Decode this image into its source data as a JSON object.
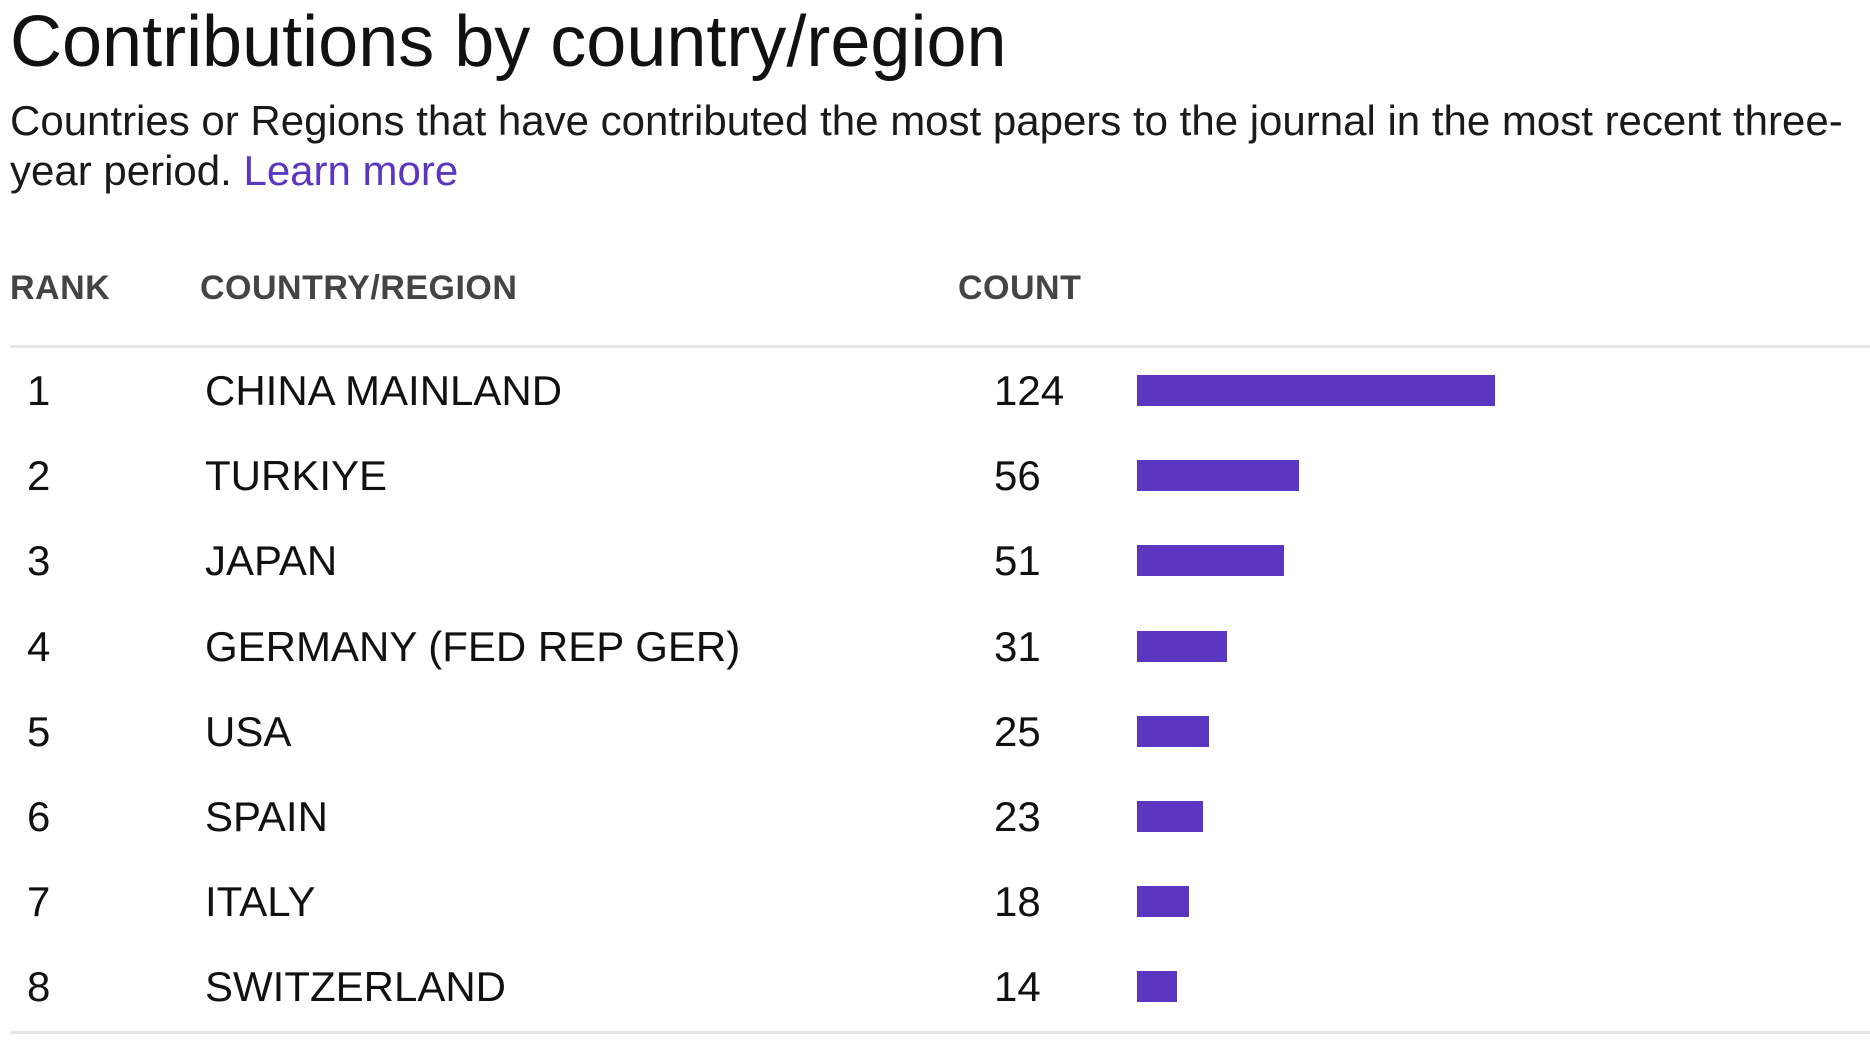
{
  "title": "Contributions by country/region",
  "subtitle": {
    "text": "Countries or Regions that have contributed the most papers to the journal in the most recent three-year period.",
    "link_label": "Learn more"
  },
  "columns": {
    "rank": "RANK",
    "country": "COUNTRY/REGION",
    "count": "COUNT"
  },
  "colors": {
    "accent": "#5b36c0",
    "divider": "#e6e6e6"
  },
  "rows": [
    {
      "rank": "1",
      "country": "CHINA MAINLAND",
      "count": "124",
      "value": 124
    },
    {
      "rank": "2",
      "country": "TURKIYE",
      "count": "56",
      "value": 56
    },
    {
      "rank": "3",
      "country": "JAPAN",
      "count": "51",
      "value": 51
    },
    {
      "rank": "4",
      "country": "GERMANY (FED REP GER)",
      "count": "31",
      "value": 31
    },
    {
      "rank": "5",
      "country": "USA",
      "count": "25",
      "value": 25
    },
    {
      "rank": "6",
      "country": "SPAIN",
      "count": "23",
      "value": 23
    },
    {
      "rank": "7",
      "country": "ITALY",
      "count": "18",
      "value": 18
    },
    {
      "rank": "8",
      "country": "SWITZERLAND",
      "count": "14",
      "value": 14
    }
  ]
}
